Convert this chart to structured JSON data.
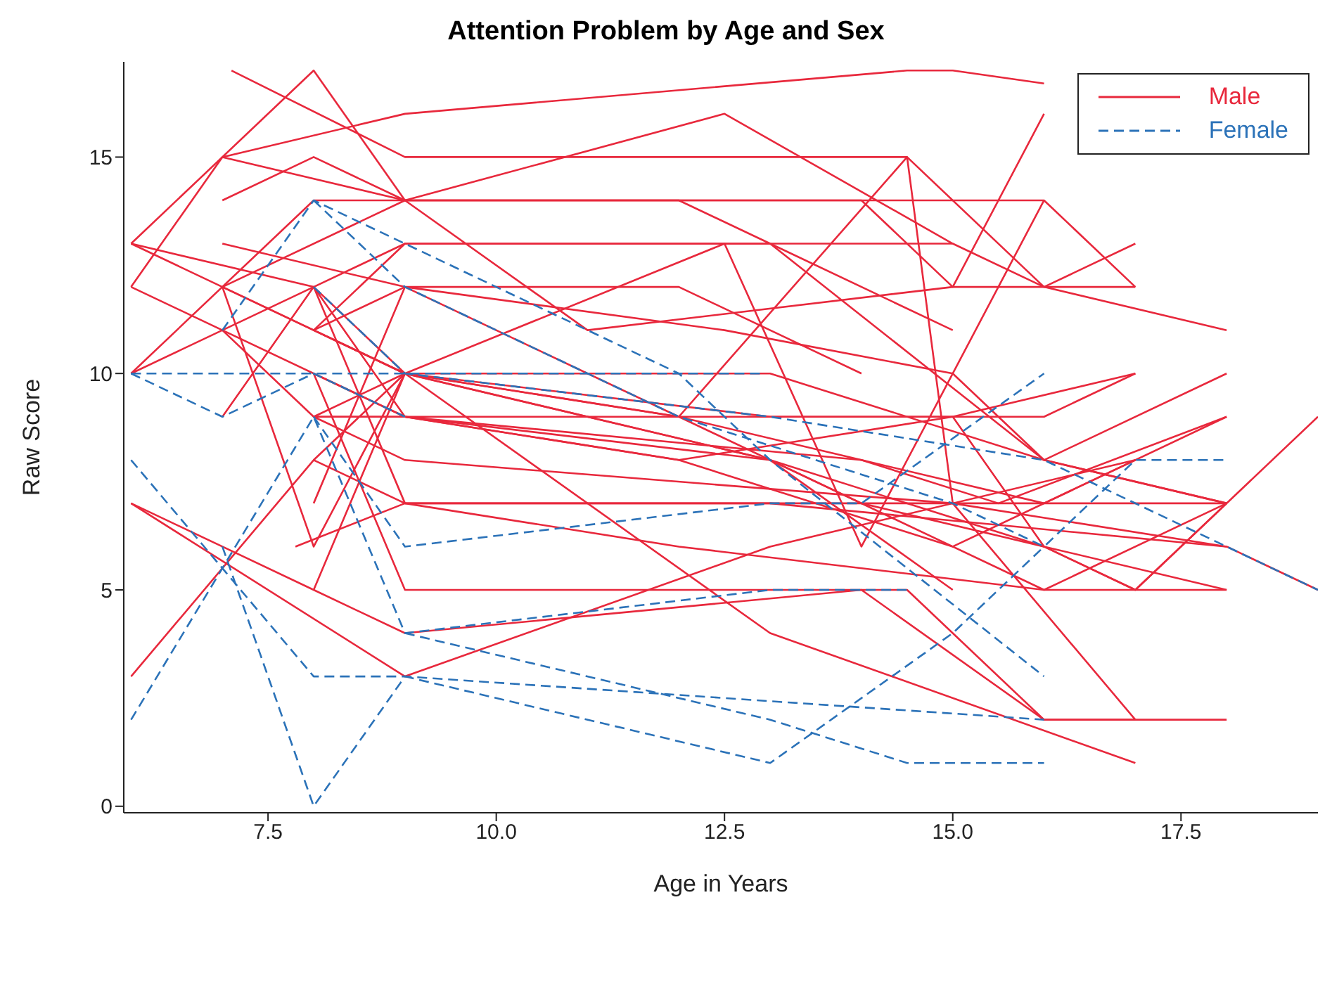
{
  "chart_data": {
    "type": "line",
    "title": "Attention Problem by Age and Sex",
    "xlabel": "Age in Years",
    "ylabel": "Raw Score",
    "xlim": [
      5.92,
      19
    ],
    "xticks": [
      {
        "value": 7.5,
        "label": "7.5"
      },
      {
        "value": 10,
        "label": "10.0"
      },
      {
        "value": 12.5,
        "label": "12.5"
      },
      {
        "value": 15,
        "label": "15.0"
      },
      {
        "value": 17.5,
        "label": "17.5"
      }
    ],
    "ylim": [
      -0.15,
      17.2
    ],
    "yticks": [
      0,
      5,
      10,
      15
    ],
    "legend": "top right",
    "marker": "none",
    "series": [
      {
        "name": "Male",
        "color": "#e8283c",
        "line_style": "solid",
        "x": [
          7,
          9,
          14.5,
          15,
          16
        ],
        "values": [
          15,
          16,
          17,
          17,
          16.7
        ]
      },
      {
        "color": "#e8283c",
        "line_style": "solid",
        "x": [
          7.1,
          9,
          14.5,
          16,
          18
        ],
        "values": [
          17,
          15,
          15,
          12,
          11
        ]
      },
      {
        "color": "#e8283c",
        "line_style": "solid",
        "x": [
          6,
          8,
          9,
          12.5,
          15
        ],
        "values": [
          13,
          17,
          14,
          16,
          13
        ]
      },
      {
        "color": "#e8283c",
        "line_style": "solid",
        "x": [
          6,
          7,
          9,
          14,
          15,
          17
        ],
        "values": [
          12,
          15,
          14,
          14,
          12,
          12
        ]
      },
      {
        "color": "#e8283c",
        "line_style": "solid",
        "x": [
          7,
          8,
          9,
          16,
          17
        ],
        "values": [
          14,
          15,
          14,
          14,
          12
        ]
      },
      {
        "color": "#e8283c",
        "line_style": "solid",
        "x": [
          6,
          8,
          9,
          11,
          15,
          16
        ],
        "values": [
          10,
          14,
          14,
          11,
          12,
          16
        ]
      },
      {
        "color": "#e8283c",
        "line_style": "solid",
        "x": [
          6,
          8,
          9,
          13,
          15
        ],
        "values": [
          13,
          12,
          13,
          13,
          11
        ]
      },
      {
        "color": "#e8283c",
        "line_style": "solid",
        "x": [
          7,
          9,
          12,
          13,
          16,
          18
        ],
        "values": [
          12,
          14,
          14,
          13,
          8,
          7
        ]
      },
      {
        "color": "#e8283c",
        "line_style": "solid",
        "x": [
          7,
          8,
          9,
          12,
          14
        ],
        "values": [
          12,
          11,
          12,
          12,
          10
        ]
      },
      {
        "color": "#e8283c",
        "line_style": "solid",
        "x": [
          6,
          8,
          9,
          15,
          16,
          17
        ],
        "values": [
          13,
          11,
          13,
          13,
          12,
          13
        ]
      },
      {
        "color": "#e8283c",
        "line_style": "solid",
        "x": [
          7,
          9,
          12.5,
          15,
          16,
          18
        ],
        "values": [
          13,
          12,
          11,
          10,
          8,
          7
        ]
      },
      {
        "color": "#e8283c",
        "line_style": "solid",
        "x": [
          8,
          9,
          12.5,
          14,
          16
        ],
        "values": [
          11,
          10,
          13,
          6,
          14
        ]
      },
      {
        "color": "#e8283c",
        "line_style": "solid",
        "x": [
          8,
          9,
          12,
          14.5,
          15,
          17
        ],
        "values": [
          12,
          10,
          9,
          15,
          7,
          2
        ]
      },
      {
        "color": "#e8283c",
        "line_style": "solid",
        "x": [
          6,
          8,
          9,
          13,
          16,
          18
        ],
        "values": [
          10,
          12,
          9,
          8,
          5,
          7
        ]
      },
      {
        "color": "#e8283c",
        "line_style": "solid",
        "x": [
          7,
          8,
          9,
          12,
          15,
          17
        ],
        "values": [
          11,
          9,
          10,
          9,
          9,
          10
        ]
      },
      {
        "color": "#e8283c",
        "line_style": "solid",
        "x": [
          8,
          9,
          13,
          16,
          18
        ],
        "values": [
          11,
          10,
          10,
          8,
          10
        ]
      },
      {
        "color": "#e8283c",
        "line_style": "solid",
        "x": [
          8,
          9,
          14,
          15.5,
          18
        ],
        "values": [
          10,
          9,
          8,
          7,
          9
        ]
      },
      {
        "color": "#e8283c",
        "line_style": "solid",
        "x": [
          6,
          9,
          12,
          14,
          16,
          17
        ],
        "values": [
          12,
          9,
          9,
          8,
          7,
          8
        ]
      },
      {
        "color": "#e8283c",
        "line_style": "solid",
        "x": [
          8,
          9,
          12,
          15,
          18
        ],
        "values": [
          9,
          9,
          8,
          6,
          9
        ]
      },
      {
        "color": "#e8283c",
        "line_style": "solid",
        "x": [
          8,
          9,
          14,
          16,
          18
        ],
        "values": [
          7,
          12,
          7,
          6,
          5
        ]
      },
      {
        "color": "#e8283c",
        "line_style": "solid",
        "x": [
          8,
          9,
          15,
          18
        ],
        "values": [
          9,
          8,
          7,
          6
        ]
      },
      {
        "color": "#e8283c",
        "line_style": "solid",
        "x": [
          8,
          9,
          13,
          18,
          19
        ],
        "values": [
          8,
          7,
          7,
          6,
          5
        ]
      },
      {
        "color": "#e8283c",
        "line_style": "solid",
        "x": [
          7.8,
          9,
          13,
          18
        ],
        "values": [
          6,
          7,
          7,
          7
        ]
      },
      {
        "color": "#e8283c",
        "line_style": "solid",
        "x": [
          8,
          9,
          12,
          15,
          16,
          17,
          18
        ],
        "values": [
          9,
          9,
          8,
          9,
          6,
          5,
          7
        ]
      },
      {
        "color": "#e8283c",
        "line_style": "solid",
        "x": [
          7,
          8,
          9,
          13,
          15
        ],
        "values": [
          12,
          6,
          10,
          8,
          5
        ]
      },
      {
        "color": "#e8283c",
        "line_style": "solid",
        "x": [
          8,
          9,
          14.5,
          16,
          17
        ],
        "values": [
          10,
          5,
          5,
          2,
          2
        ]
      },
      {
        "color": "#e8283c",
        "line_style": "solid",
        "x": [
          6,
          7,
          8,
          9,
          14,
          16,
          18
        ],
        "values": [
          7,
          6,
          5,
          4,
          5,
          2,
          2
        ]
      },
      {
        "color": "#e8283c",
        "line_style": "solid",
        "x": [
          6,
          9,
          13,
          17
        ],
        "values": [
          7,
          3,
          6,
          8
        ]
      },
      {
        "color": "#e8283c",
        "line_style": "solid",
        "x": [
          6,
          8,
          9,
          13,
          17
        ],
        "values": [
          3,
          8,
          10,
          4,
          1
        ]
      },
      {
        "color": "#e8283c",
        "line_style": "solid",
        "x": [
          8,
          9,
          13,
          16,
          17,
          19
        ],
        "values": [
          5,
          10,
          8,
          6,
          5,
          9
        ]
      },
      {
        "color": "#e8283c",
        "line_style": "solid",
        "x": [
          7,
          8,
          9,
          12,
          16,
          18
        ],
        "values": [
          9,
          12,
          7,
          6,
          5,
          5
        ]
      },
      {
        "color": "#e8283c",
        "line_style": "solid",
        "x": [
          8,
          9,
          13,
          16,
          17
        ],
        "values": [
          11,
          10,
          9,
          9,
          10
        ]
      },
      {
        "name": "Female",
        "color": "#2b72b8",
        "line_style": "dashed",
        "x": [
          6,
          8,
          12.9
        ],
        "values": [
          10,
          10,
          10
        ]
      },
      {
        "color": "#2b72b8",
        "line_style": "dashed",
        "x": [
          6,
          7,
          8,
          9
        ],
        "values": [
          10,
          9,
          10,
          9
        ]
      },
      {
        "color": "#2b72b8",
        "line_style": "dashed",
        "x": [
          7,
          8,
          9,
          12,
          13,
          16
        ],
        "values": [
          11,
          14,
          13,
          10,
          8,
          3
        ]
      },
      {
        "color": "#2b72b8",
        "line_style": "dashed",
        "x": [
          8,
          9,
          12,
          15,
          16,
          17,
          18
        ],
        "values": [
          14,
          12,
          9,
          7,
          6,
          8,
          8
        ]
      },
      {
        "color": "#2b72b8",
        "line_style": "dashed",
        "x": [
          6,
          8,
          9,
          13,
          14.5
        ],
        "values": [
          2,
          9,
          4,
          5,
          5
        ]
      },
      {
        "color": "#2b72b8",
        "line_style": "dashed",
        "x": [
          6,
          8,
          9,
          16
        ],
        "values": [
          8,
          3,
          3,
          2
        ]
      },
      {
        "color": "#2b72b8",
        "line_style": "dashed",
        "x": [
          7,
          8,
          9,
          13,
          15,
          16
        ],
        "values": [
          6,
          0,
          3,
          1,
          4,
          6
        ]
      },
      {
        "color": "#2b72b8",
        "line_style": "dashed",
        "x": [
          9,
          13,
          14.5,
          16
        ],
        "values": [
          4,
          2,
          1,
          1
        ]
      },
      {
        "color": "#2b72b8",
        "line_style": "dashed",
        "x": [
          8,
          9,
          13,
          14,
          16
        ],
        "values": [
          9,
          6,
          7,
          7,
          10
        ]
      },
      {
        "color": "#2b72b8",
        "line_style": "dashed",
        "x": [
          8,
          9,
          13,
          16,
          19
        ],
        "values": [
          12,
          10,
          9,
          8,
          5
        ]
      }
    ]
  }
}
